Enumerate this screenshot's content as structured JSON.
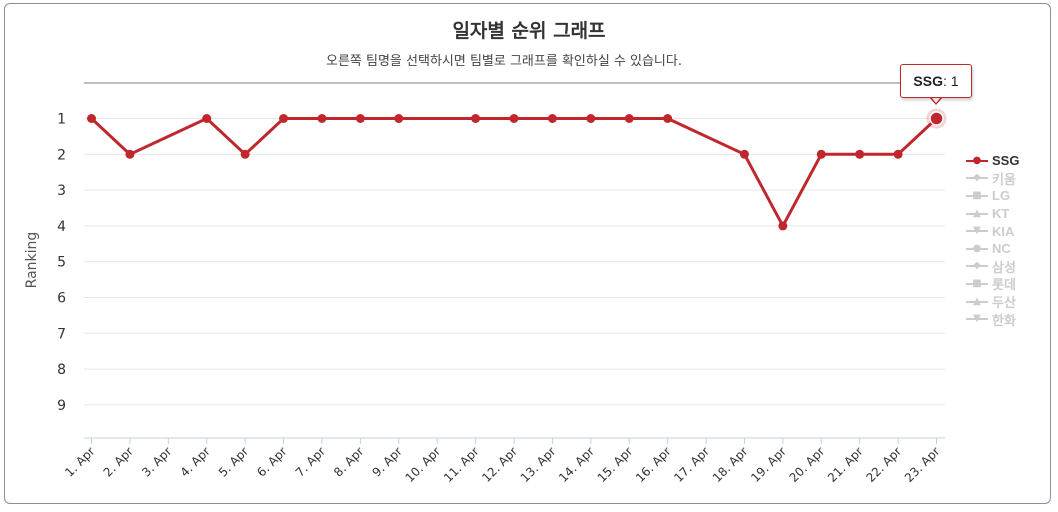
{
  "chart_data": {
    "type": "line",
    "title": "일자별 순위 그래프",
    "subtitle": "오른쪽 팀명을 선택하시면 팀별로 그래프를 확인하실 수 있습니다.",
    "ylabel": "Ranking",
    "xlabel": "",
    "ylim": [
      9,
      1
    ],
    "y_reversed": true,
    "yticks": [
      "1",
      "2",
      "3",
      "4",
      "5",
      "6",
      "7",
      "8",
      "9"
    ],
    "categories": [
      "1. Apr",
      "2. Apr",
      "3. Apr",
      "4. Apr",
      "5. Apr",
      "6. Apr",
      "7. Apr",
      "8. Apr",
      "9. Apr",
      "10. Apr",
      "11. Apr",
      "12. Apr",
      "13. Apr",
      "14. Apr",
      "15. Apr",
      "16. Apr",
      "17. Apr",
      "18. Apr",
      "19. Apr",
      "20. Apr",
      "21. Apr",
      "22. Apr",
      "23. Apr"
    ],
    "series": [
      {
        "name": "SSG",
        "values": [
          1,
          2,
          null,
          1,
          2,
          1,
          1,
          1,
          1,
          null,
          1,
          1,
          1,
          1,
          1,
          1,
          null,
          2,
          4,
          2,
          2,
          2,
          1
        ],
        "visible": true
      }
    ],
    "grid": true,
    "legend_placement": "right"
  },
  "legend": [
    {
      "label": "SSG",
      "marker": "●",
      "active": true
    },
    {
      "label": "키움",
      "marker": "◆",
      "active": false
    },
    {
      "label": "LG",
      "marker": "■",
      "active": false
    },
    {
      "label": "KT",
      "marker": "▲",
      "active": false
    },
    {
      "label": "KIA",
      "marker": "▼",
      "active": false
    },
    {
      "label": "NC",
      "marker": "●",
      "active": false
    },
    {
      "label": "삼성",
      "marker": "◆",
      "active": false
    },
    {
      "label": "롯데",
      "marker": "■",
      "active": false
    },
    {
      "label": "두산",
      "marker": "▲",
      "active": false
    },
    {
      "label": "한화",
      "marker": "▼",
      "active": false
    }
  ],
  "tooltip": {
    "series": "SSG",
    "value": ": 1"
  },
  "colors": {
    "series": "#c0272d",
    "inactive": "#cccccc",
    "grid": "#e6e6e6",
    "axis": "#c0d0e0"
  }
}
